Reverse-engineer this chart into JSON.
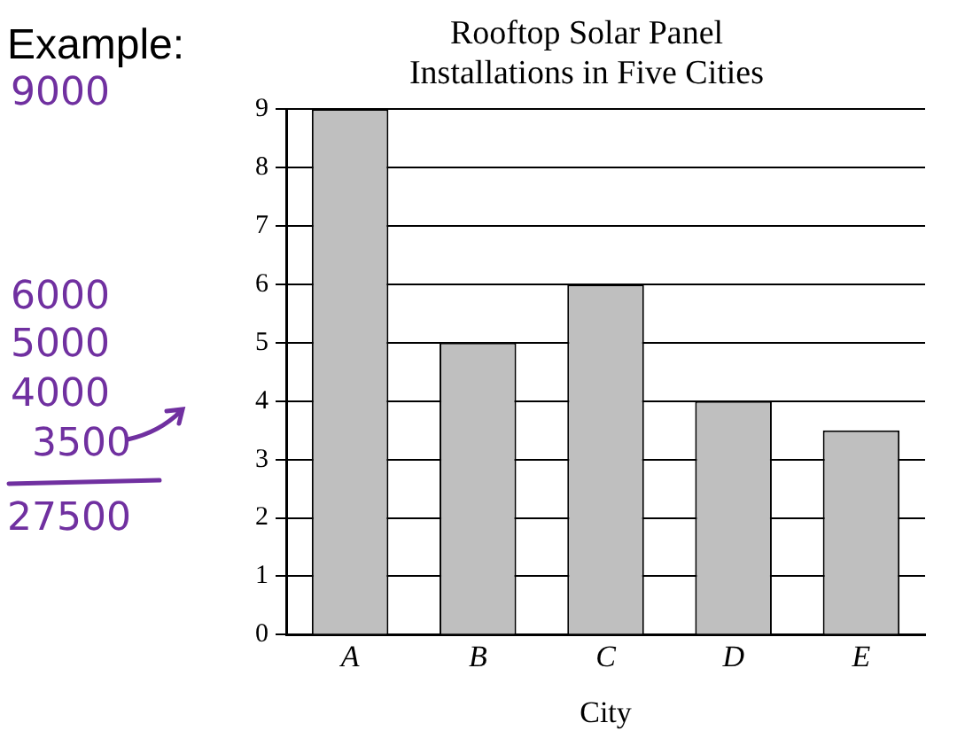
{
  "chart_data": {
    "type": "bar",
    "title": "Rooftop Solar Panel Installations in Five Cities",
    "xlabel": "City",
    "categories": [
      "A",
      "B",
      "C",
      "D",
      "E"
    ],
    "values": [
      9,
      5,
      6,
      4,
      3.5
    ],
    "color": "#bfbfbf",
    "ylim": [
      0,
      9
    ],
    "yticks": [
      0,
      1,
      2,
      3,
      4,
      5,
      6,
      7,
      8,
      9
    ],
    "grid": "y",
    "annotations": [
      "Example:",
      "9000",
      "6000",
      "5000",
      "4000",
      "3500",
      "27500"
    ]
  }
}
